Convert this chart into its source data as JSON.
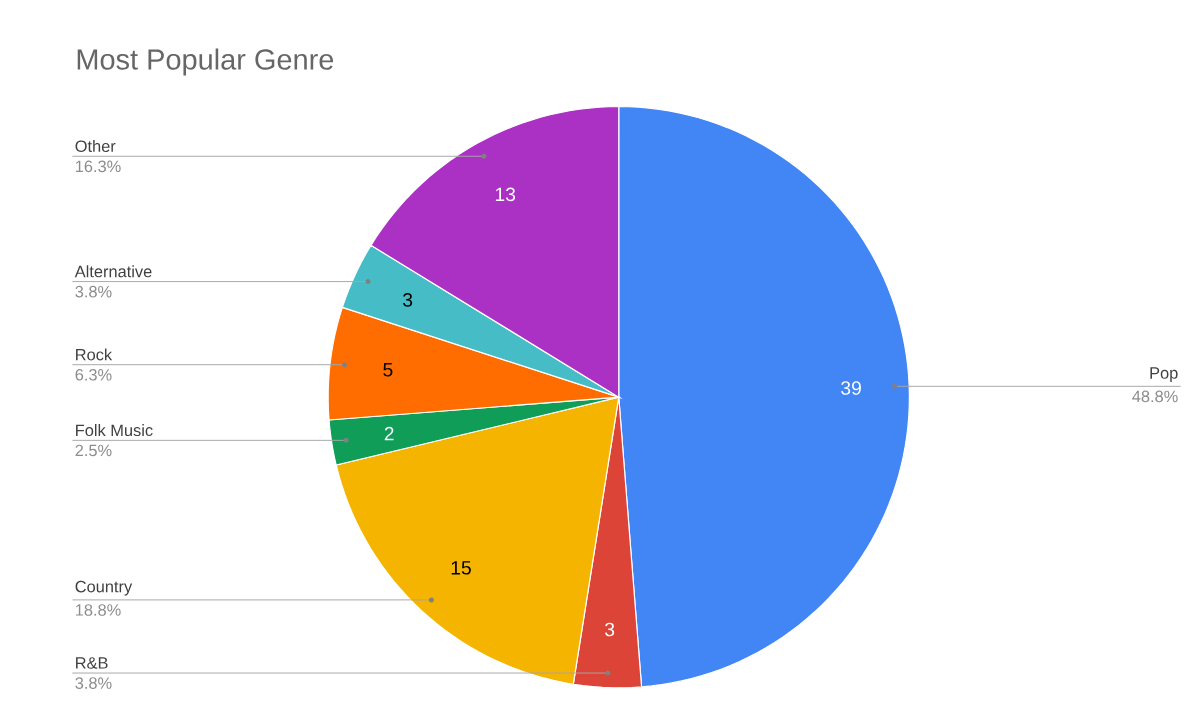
{
  "chart_data": {
    "type": "pie",
    "title": "Most Popular Genre",
    "categories": [
      "Pop",
      "R&B",
      "Country",
      "Folk Music",
      "Rock",
      "Alternative",
      "Other"
    ],
    "values": [
      39,
      3,
      15,
      2,
      5,
      3,
      13
    ],
    "colors": [
      "#4285f4",
      "#db4437",
      "#f4b400",
      "#0f9d58",
      "#ff6d01",
      "#46bdc6",
      "#ab30c4"
    ],
    "annotations": [
      "48.8%",
      "3.8%",
      "18.8%",
      "2.5%",
      "6.3%",
      "3.8%",
      "16.3%"
    ],
    "data_labels": true
  }
}
